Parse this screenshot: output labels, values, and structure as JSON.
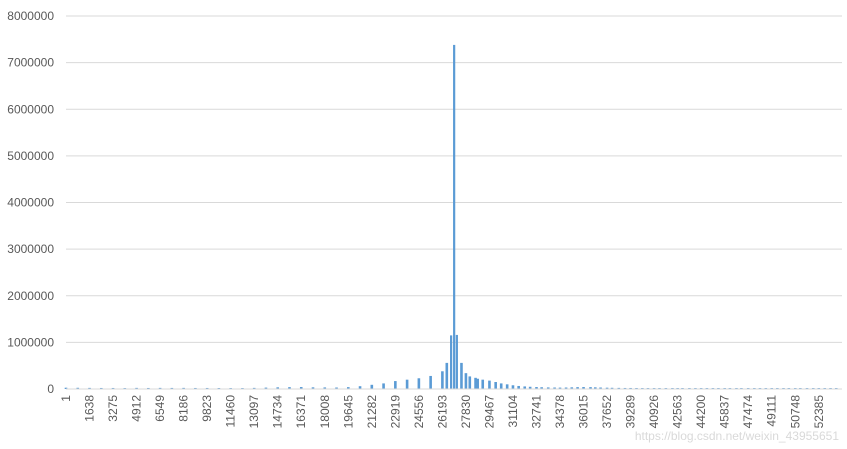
{
  "chart_data": {
    "type": "bar",
    "title": "",
    "xlabel": "",
    "ylabel": "",
    "ylim": [
      0,
      8000000
    ],
    "yticks": [
      0,
      1000000,
      2000000,
      3000000,
      4000000,
      5000000,
      6000000,
      7000000,
      8000000
    ],
    "ytick_labels": [
      "0",
      "1000000",
      "2000000",
      "3000000",
      "4000000",
      "5000000",
      "6000000",
      "7000000",
      "8000000"
    ],
    "x_tick_labels": [
      "1",
      "1638",
      "3275",
      "4912",
      "6549",
      "8186",
      "9823",
      "11460",
      "13097",
      "14734",
      "16371",
      "18008",
      "19645",
      "21282",
      "22919",
      "24556",
      "26193",
      "27830",
      "29467",
      "31104",
      "32741",
      "34378",
      "36015",
      "37652",
      "39289",
      "40926",
      "42563",
      "44200",
      "45837",
      "47474",
      "49111",
      "50748",
      "52385"
    ],
    "x_range": [
      1,
      54000
    ],
    "grid": true,
    "legend": "none",
    "color": "#5b9bd5",
    "series": [
      {
        "x": [
          1,
          819,
          1638,
          2456,
          3275,
          4093,
          4912,
          5730,
          6549,
          7367,
          8186,
          9004,
          9823,
          10641,
          11460,
          12278,
          13097,
          13915,
          14734,
          15552,
          16371,
          17189,
          18008,
          18826,
          19645,
          20463,
          21282,
          22100,
          22919,
          23737,
          24556,
          25374,
          26193,
          26500,
          26800,
          27011,
          27200,
          27520,
          27830,
          28100,
          28500,
          28648,
          29000,
          29467,
          29900,
          30285,
          30700,
          31104,
          31500,
          31922,
          32300,
          32741,
          33100,
          33559,
          34000,
          34378,
          34800,
          35196,
          35600,
          36015,
          36500,
          36833,
          37200,
          37652,
          38000,
          38470,
          38900,
          39289,
          39700,
          40107,
          40500,
          40926,
          41300,
          41744,
          42200,
          42563,
          42900,
          43381,
          43800,
          44200,
          44600,
          45018,
          45400,
          45837,
          46200,
          46655,
          47000,
          47474,
          47900,
          48292,
          48700,
          49111,
          49500,
          49929,
          50300,
          50748,
          51100,
          51566,
          52000,
          52385,
          52800,
          53203,
          53600
        ],
        "values": [
          28000,
          26000,
          24000,
          22000,
          22000,
          20000,
          24000,
          22000,
          24000,
          23000,
          24000,
          22000,
          22000,
          21000,
          20000,
          20000,
          24000,
          30000,
          36000,
          40000,
          42000,
          36000,
          34000,
          32000,
          40000,
          60000,
          90000,
          120000,
          170000,
          200000,
          230000,
          280000,
          380000,
          560000,
          1150000,
          7380000,
          1160000,
          560000,
          340000,
          270000,
          240000,
          220000,
          200000,
          180000,
          150000,
          120000,
          100000,
          80000,
          65000,
          55000,
          48000,
          42000,
          38000,
          34000,
          32000,
          30000,
          32000,
          36000,
          40000,
          42000,
          40000,
          36000,
          32000,
          28000,
          26000,
          24000,
          22000,
          22000,
          21000,
          20000,
          20000,
          20000,
          20000,
          20000,
          20000,
          20000,
          20000,
          20000,
          20000,
          20000,
          20000,
          20000,
          20000,
          20000,
          20000,
          20000,
          20000,
          20000,
          20000,
          20000,
          20000,
          20000,
          20000,
          20000,
          20000,
          20000,
          20000,
          20000,
          20000,
          20000,
          20000,
          20000,
          20000
        ]
      }
    ]
  },
  "watermark": "https://blog.csdn.net/weixin_43955651"
}
